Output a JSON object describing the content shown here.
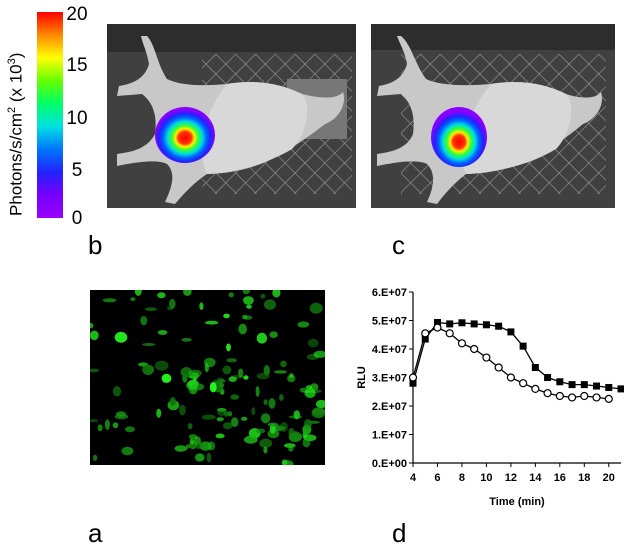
{
  "colorbar": {
    "ticks": [
      "20",
      "15",
      "10",
      "5",
      "0"
    ],
    "label_main": "Photons/s/cm",
    "label_sup1": "2",
    "label_mid": " (x 10",
    "label_sup2": "3",
    "label_end": ")",
    "colors": [
      "#ff0000",
      "#ff8800",
      "#ffff00",
      "#66ff00",
      "#00ff66",
      "#00e0e0",
      "#0077ff",
      "#2222ff",
      "#7700ff",
      "#9900ff"
    ]
  },
  "panel_letters": {
    "a": "a",
    "b": "b",
    "c": "c",
    "d": "d"
  },
  "chart_data": {
    "type": "line",
    "xlabel": "Time (min)",
    "ylabel": "RLU",
    "xlim": [
      4,
      21
    ],
    "ylim": [
      0,
      60000000
    ],
    "xticks": [
      "4",
      "6",
      "8",
      "10",
      "12",
      "14",
      "16",
      "18",
      "20"
    ],
    "xtick_values": [
      4,
      6,
      8,
      10,
      12,
      14,
      16,
      18,
      20
    ],
    "yticks": [
      "0.E+00",
      "1.E+07",
      "2.E+07",
      "3.E+07",
      "4.E+07",
      "5.E+07",
      "6.E+07"
    ],
    "ytick_values": [
      0,
      10000000,
      20000000,
      30000000,
      40000000,
      50000000,
      60000000
    ],
    "grid": false,
    "series": [
      {
        "marker": "filled-square",
        "x": [
          4,
          5,
          6,
          7,
          8,
          9,
          10,
          11,
          12,
          13,
          14,
          15,
          16,
          17,
          18,
          19,
          20,
          21
        ],
        "values": [
          28000000,
          43500000,
          49300000,
          48800000,
          49200000,
          48800000,
          48500000,
          48000000,
          46000000,
          41000000,
          33500000,
          30000000,
          28500000,
          27500000,
          27500000,
          27000000,
          26500000,
          26000000
        ]
      },
      {
        "marker": "open-circle",
        "x": [
          4,
          5,
          6,
          7,
          8,
          9,
          10,
          11,
          12,
          13,
          14,
          15,
          16,
          17,
          18,
          19,
          20
        ],
        "values": [
          30000000,
          45500000,
          47500000,
          45500000,
          42000000,
          40000000,
          37000000,
          33500000,
          30000000,
          28000000,
          26000000,
          24500000,
          23500000,
          23000000,
          23500000,
          23000000,
          22500000
        ]
      }
    ]
  }
}
